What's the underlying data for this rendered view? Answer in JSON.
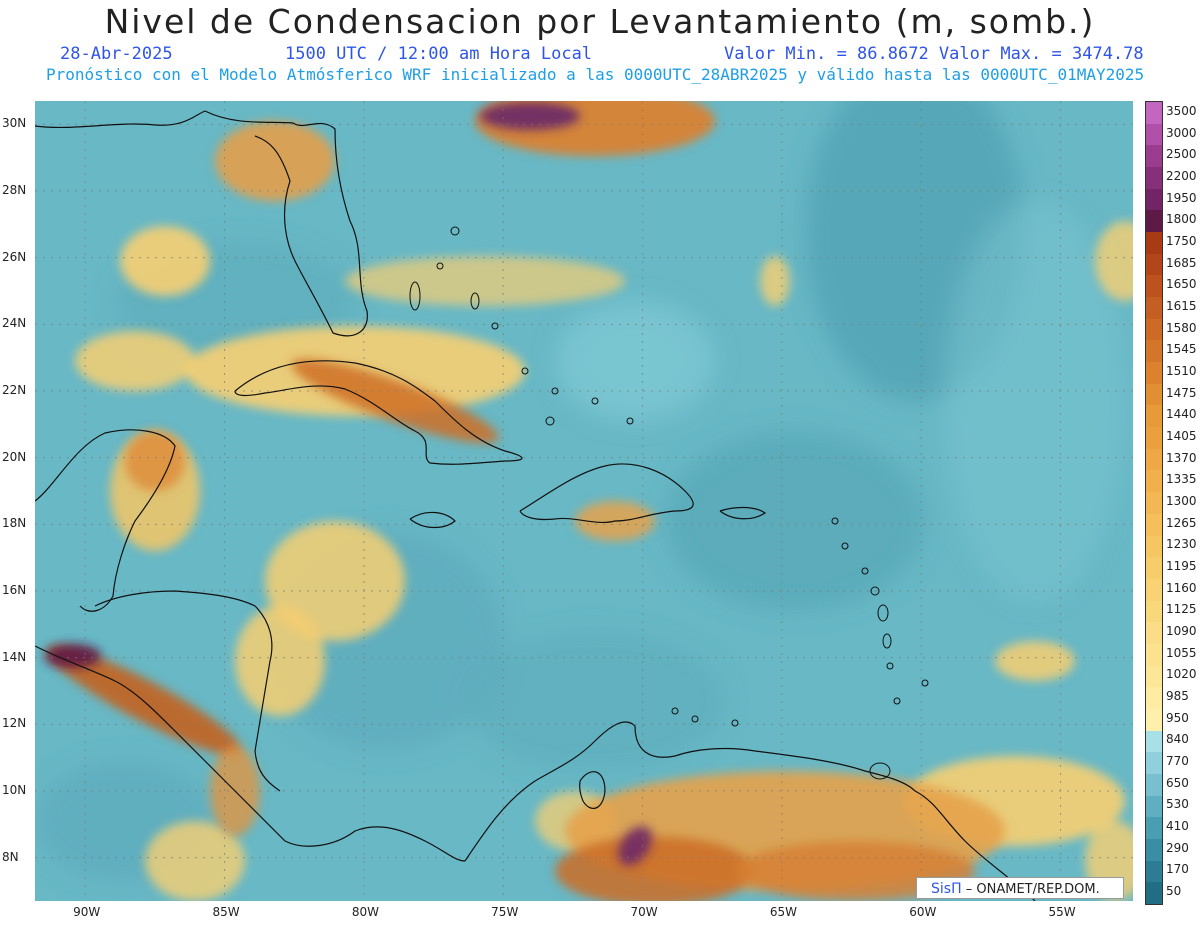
{
  "header": {
    "title": "Nivel de Condensacion por Levantamiento (m, somb.)",
    "date": "28-Abr-2025",
    "time": "1500 UTC / 12:00 am Hora Local",
    "minmax": "Valor Min. = 86.8672  Valor Max. = 3474.78",
    "model_line": "Pronóstico con el Modelo Atmósferico WRF inicializado a las 0000UTC_28ABR2025 y válido hasta las  0000UTC_01MAY2025"
  },
  "axes": {
    "lat_labels": [
      "30N",
      "28N",
      "26N",
      "24N",
      "22N",
      "20N",
      "18N",
      "16N",
      "14N",
      "12N",
      "10N",
      "8N"
    ],
    "lat_values": [
      30,
      28,
      26,
      24,
      22,
      20,
      18,
      16,
      14,
      12,
      10,
      8
    ],
    "lon_labels": [
      "90W",
      "85W",
      "80W",
      "75W",
      "70W",
      "65W",
      "60W",
      "55W"
    ],
    "lon_values": [
      -90,
      -85,
      -80,
      -75,
      -70,
      -65,
      -60,
      -55
    ],
    "lat_range": [
      6.7,
      30.7
    ],
    "lon_range": [
      -91.8,
      -52.4
    ]
  },
  "colorbar": {
    "levels": [
      "3500",
      "3000",
      "2500",
      "2200",
      "1950",
      "1800",
      "1750",
      "1685",
      "1650",
      "1615",
      "1580",
      "1545",
      "1510",
      "1475",
      "1440",
      "1405",
      "1370",
      "1335",
      "1300",
      "1265",
      "1230",
      "1195",
      "1160",
      "1125",
      "1090",
      "1055",
      "1020",
      "985",
      "950",
      "840",
      "770",
      "650",
      "530",
      "410",
      "290",
      "170",
      "50"
    ],
    "colors": [
      "#c266c0",
      "#b050a8",
      "#9a3d8f",
      "#86307a",
      "#722466",
      "#5e1a46",
      "#a83a14",
      "#b2461a",
      "#bc521e",
      "#c45e22",
      "#cc6a26",
      "#d4762a",
      "#dc822e",
      "#e28e33",
      "#e89a38",
      "#ec9f3d",
      "#efa845",
      "#f1b04c",
      "#f3b853",
      "#f5bf5a",
      "#f6c662",
      "#f7cc6a",
      "#f8d273",
      "#f9d87c",
      "#fadd86",
      "#fbe28f",
      "#fce798",
      "#fdeca2",
      "#fef0ac",
      "#a8e0e8",
      "#90d0dc",
      "#78c0cf",
      "#60afc1",
      "#4a9eb2",
      "#3a8ea3",
      "#2c7d93",
      "#216e84"
    ]
  },
  "credit": {
    "brand": "SisΠ",
    "text": "– ONAMET/REP.DOM."
  },
  "palette": {
    "ocean": "#68b8c6",
    "ocean_dark": "#4a9eb2",
    "land_dry": "#f7cf72",
    "land_hot": "#c9641f",
    "land_peak": "#6e2a66",
    "coast": "#111111"
  }
}
